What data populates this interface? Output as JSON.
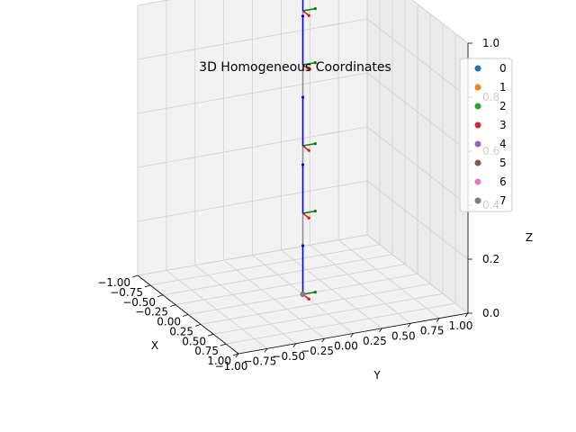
{
  "chart_data": {
    "type": "scatter",
    "title": "3D Homogeneous Coordinates",
    "xlabel": "X",
    "ylabel": "Y",
    "zlabel": "Z",
    "xlim": [
      -1.0,
      1.0
    ],
    "ylim": [
      -1.0,
      1.0
    ],
    "zlim": [
      0.0,
      1.0
    ],
    "x_ticks": [
      "−1.00",
      "−0.75",
      "−0.50",
      "−0.25",
      "0.00",
      "0.25",
      "0.50",
      "0.75",
      "1.00"
    ],
    "y_ticks": [
      "−1.00",
      "−0.75",
      "−0.50",
      "−0.25",
      "0.00",
      "0.25",
      "0.50",
      "0.75",
      "1.00"
    ],
    "z_ticks": [
      "0.0",
      "0.2",
      "0.4",
      "0.6",
      "0.8",
      "1.0"
    ],
    "grid": true,
    "legend_position": "top-right",
    "series": [
      {
        "name": "0",
        "color": "#1f77b4"
      },
      {
        "name": "1",
        "color": "#ff7f0e"
      },
      {
        "name": "2",
        "color": "#2ca02c"
      },
      {
        "name": "3",
        "color": "#d62728"
      },
      {
        "name": "4",
        "color": "#9467bd"
      },
      {
        "name": "5",
        "color": "#8c564b"
      },
      {
        "name": "6",
        "color": "#e377c2"
      },
      {
        "name": "7",
        "color": "#7f7f7f"
      }
    ],
    "points": [
      {
        "series": "0",
        "x": 0.0,
        "y": 0.0,
        "z": 0.0
      },
      {
        "series": "1",
        "x": 0.0,
        "y": 0.0,
        "z": 0.0
      },
      {
        "series": "2",
        "x": 0.0,
        "y": 0.0,
        "z": 0.0
      },
      {
        "series": "3",
        "x": 0.0,
        "y": 0.0,
        "z": 0.0
      },
      {
        "series": "4",
        "x": 0.0,
        "y": 0.0,
        "z": 0.0
      },
      {
        "series": "5",
        "x": 0.0,
        "y": 0.0,
        "z": 0.0
      },
      {
        "series": "6",
        "x": 0.0,
        "y": 0.0,
        "z": 0.0
      },
      {
        "series": "7",
        "x": 0.0,
        "y": 0.0,
        "z": 0.0
      }
    ],
    "chain": [
      {
        "x": 0.0,
        "y": 0.0,
        "z": 0.0
      },
      {
        "x": 0.0,
        "y": 0.0,
        "z": 0.3
      },
      {
        "x": 0.0,
        "y": 0.0,
        "z": 0.55
      },
      {
        "x": 0.0,
        "y": 0.0,
        "z": 0.85
      },
      {
        "x": 0.0,
        "y": 0.0,
        "z": 1.05
      }
    ]
  }
}
